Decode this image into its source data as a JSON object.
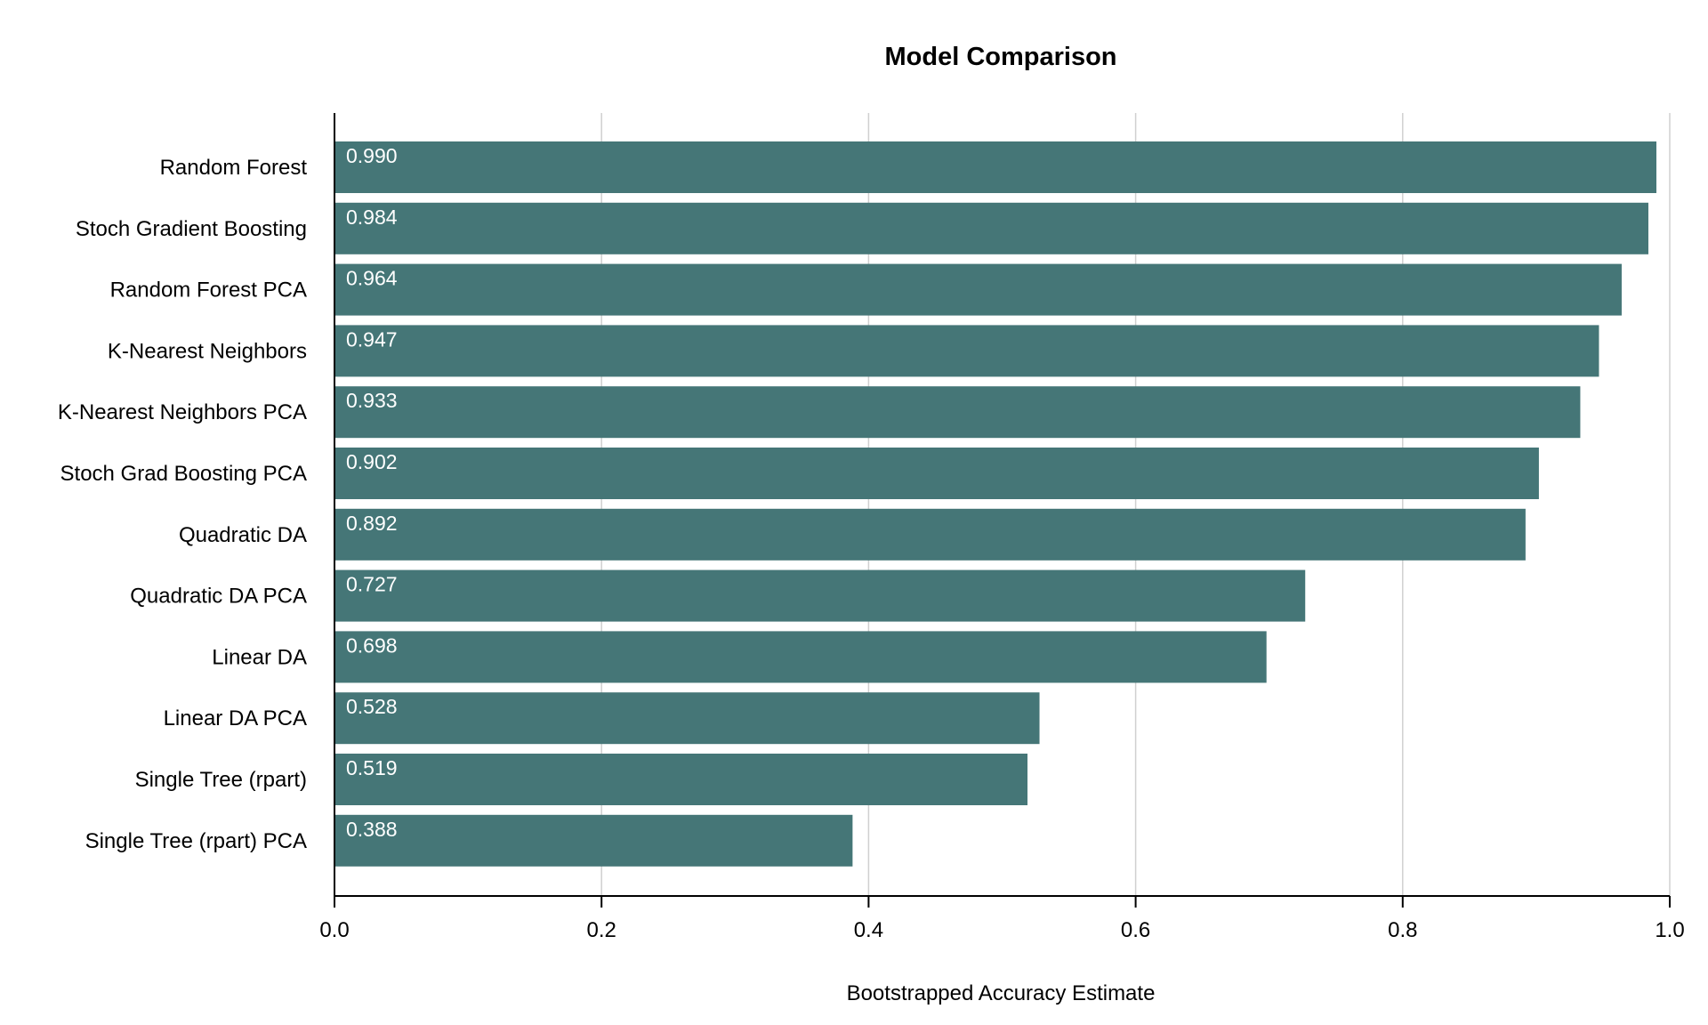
{
  "chart_data": {
    "type": "bar",
    "orientation": "horizontal",
    "title": "Model Comparison",
    "xlabel": "Bootstrapped Accuracy Estimate",
    "ylabel": "",
    "xlim": [
      0,
      1
    ],
    "x_ticks": [
      "0.0",
      "0.2",
      "0.4",
      "0.6",
      "0.8",
      "1.0"
    ],
    "grid": true,
    "bar_color": "#457677",
    "categories": [
      "Random Forest",
      "Stoch Gradient Boosting",
      "Random Forest PCA",
      "K-Nearest Neighbors",
      "K-Nearest Neighbors PCA",
      "Stoch Grad Boosting PCA",
      "Quadratic DA",
      "Quadratic DA PCA",
      "Linear DA",
      "Linear DA PCA",
      "Single Tree (rpart)",
      "Single Tree (rpart) PCA"
    ],
    "values": [
      0.99,
      0.984,
      0.964,
      0.947,
      0.933,
      0.902,
      0.892,
      0.727,
      0.698,
      0.528,
      0.519,
      0.388
    ],
    "value_labels": [
      "0.990",
      "0.984",
      "0.964",
      "0.947",
      "0.933",
      "0.902",
      "0.892",
      "0.727",
      "0.698",
      "0.528",
      "0.519",
      "0.388"
    ]
  }
}
